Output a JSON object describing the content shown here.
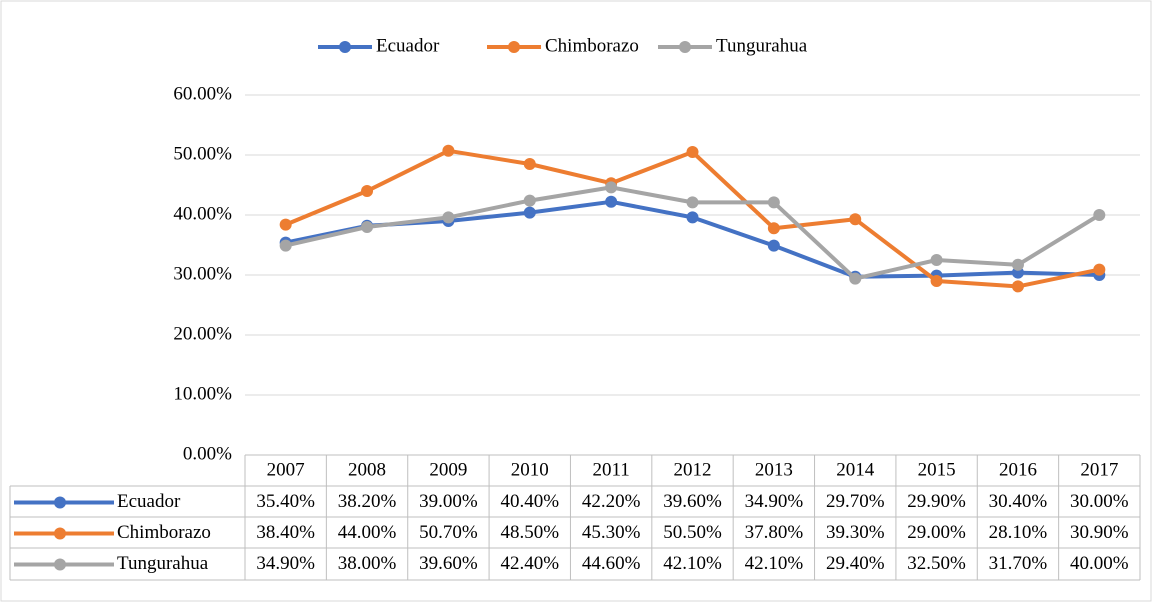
{
  "chart_data": {
    "type": "line",
    "categories": [
      "2007",
      "2008",
      "2009",
      "2010",
      "2011",
      "2012",
      "2013",
      "2014",
      "2015",
      "2016",
      "2017"
    ],
    "series": [
      {
        "name": "Ecuador",
        "color": "#4472c4",
        "values": [
          35.4,
          38.2,
          39.0,
          40.4,
          42.2,
          39.6,
          34.9,
          29.7,
          29.9,
          30.4,
          30.0
        ],
        "value_labels": [
          "35.40%",
          "38.20%",
          "39.00%",
          "40.40%",
          "42.20%",
          "39.60%",
          "34.90%",
          "29.70%",
          "29.90%",
          "30.40%",
          "30.00%"
        ]
      },
      {
        "name": "Chimborazo",
        "color": "#ed7d31",
        "values": [
          38.4,
          44.0,
          50.7,
          48.5,
          45.3,
          50.5,
          37.8,
          39.3,
          29.0,
          28.1,
          30.9
        ],
        "value_labels": [
          "38.40%",
          "44.00%",
          "50.70%",
          "48.50%",
          "45.30%",
          "50.50%",
          "37.80%",
          "39.30%",
          "29.00%",
          "28.10%",
          "30.90%"
        ]
      },
      {
        "name": "Tungurahua",
        "color": "#a5a5a5",
        "values": [
          34.9,
          38.0,
          39.6,
          42.4,
          44.6,
          42.1,
          42.1,
          29.4,
          32.5,
          31.7,
          40.0
        ],
        "value_labels": [
          "34.90%",
          "38.00%",
          "39.60%",
          "42.40%",
          "44.60%",
          "42.10%",
          "42.10%",
          "29.40%",
          "32.50%",
          "31.70%",
          "40.00%"
        ]
      }
    ],
    "ylim": [
      0,
      60
    ],
    "yticks": [
      {
        "value": 0,
        "label": "0.00%"
      },
      {
        "value": 10,
        "label": "10.00%"
      },
      {
        "value": 20,
        "label": "20.00%"
      },
      {
        "value": 30,
        "label": "30.00%"
      },
      {
        "value": 40,
        "label": "40.00%"
      },
      {
        "value": 50,
        "label": "50.00%"
      },
      {
        "value": 60,
        "label": "60.00%"
      }
    ],
    "grid": true,
    "legend": "top"
  }
}
